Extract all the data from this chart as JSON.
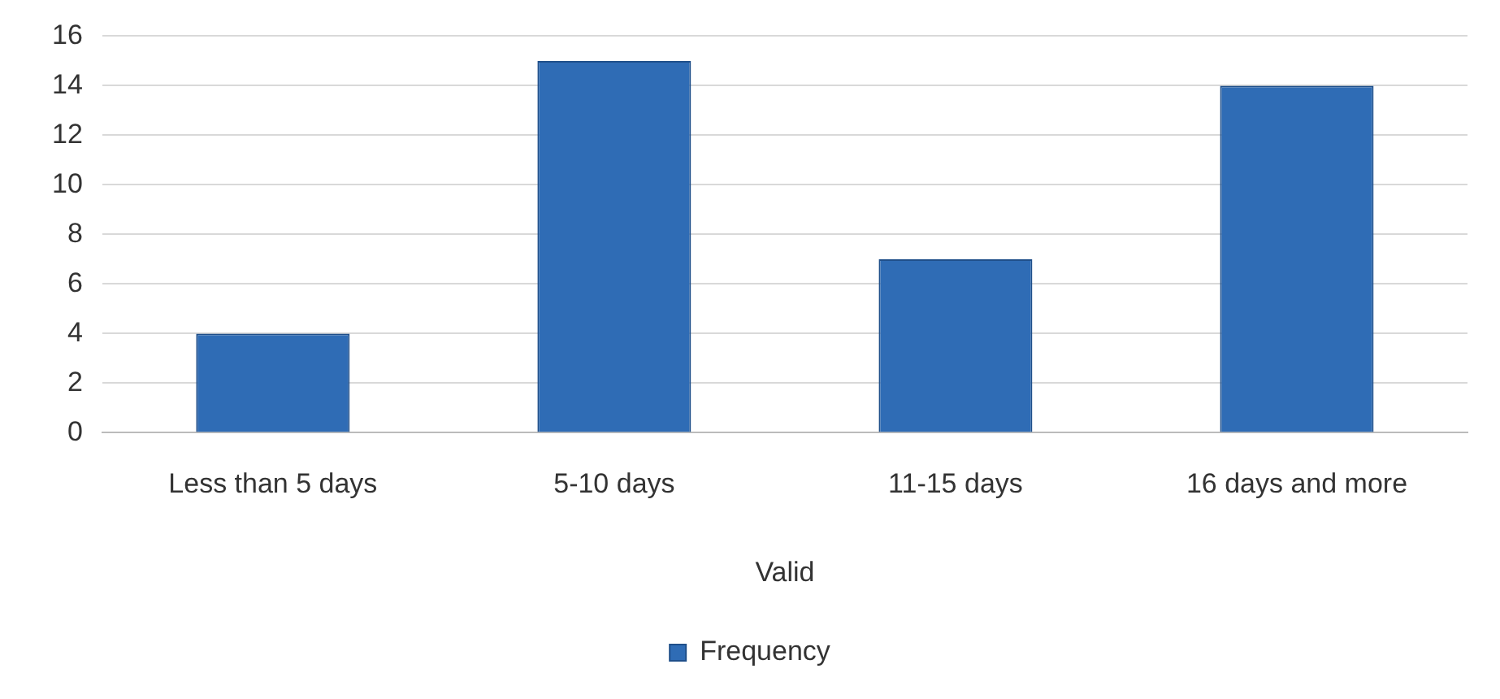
{
  "chart_data": {
    "type": "bar",
    "xlabel": "Valid",
    "categories": [
      "Less than 5 days",
      "5-10 days",
      "11-15 days",
      "16 days and more"
    ],
    "series": [
      {
        "name": "Frequency",
        "color": "#2f6cb5",
        "values": [
          4,
          15,
          7,
          14
        ]
      }
    ],
    "ylim": [
      0,
      16
    ],
    "yticks": [
      0,
      2,
      4,
      6,
      8,
      10,
      12,
      14,
      16
    ],
    "grid": "y",
    "legend": "bottom"
  }
}
